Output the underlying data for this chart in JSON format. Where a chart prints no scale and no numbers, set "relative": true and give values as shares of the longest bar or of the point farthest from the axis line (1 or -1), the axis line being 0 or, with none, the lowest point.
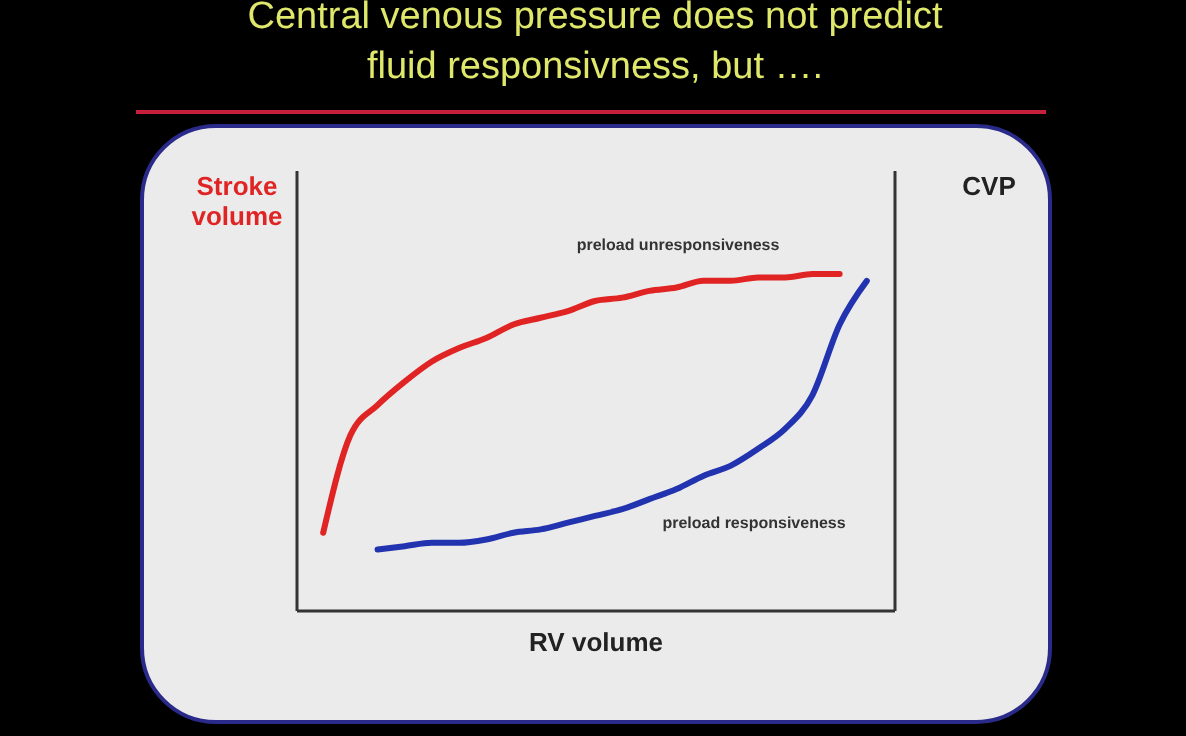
{
  "chart_data": {
    "type": "line",
    "title": "Central venous pressure does not predict fluid responsivness, but ….",
    "xlabel": "RV volume",
    "ylabel": "Stroke volume",
    "y2label": "CVP",
    "relative": true,
    "categories": [
      null,
      null,
      null,
      null,
      null,
      null,
      null,
      null,
      null,
      null,
      null,
      null,
      null,
      null,
      null,
      null,
      null,
      null,
      null,
      null,
      null
    ],
    "series": [
      {
        "color": "#e02424",
        "values": [
          0.23,
          0.52,
          0.61,
          0.68,
          0.74,
          0.78,
          0.81,
          0.85,
          0.87,
          0.89,
          0.92,
          0.93,
          0.95,
          0.96,
          0.98,
          0.98,
          0.99,
          0.99,
          1,
          1,
          null
        ]
      },
      {
        "color": "#2233b0",
        "values": [
          null,
          null,
          0.18,
          0.19,
          0.2,
          0.2,
          0.21,
          0.23,
          0.24,
          0.26,
          0.28,
          0.3,
          0.33,
          0.36,
          0.4,
          0.43,
          0.48,
          0.54,
          0.64,
          0.85,
          0.98
        ]
      }
    ],
    "annotations": [
      "preload unresponsiveness",
      "preload responsiveness"
    ],
    "line_style": "solid",
    "marker": "none"
  }
}
